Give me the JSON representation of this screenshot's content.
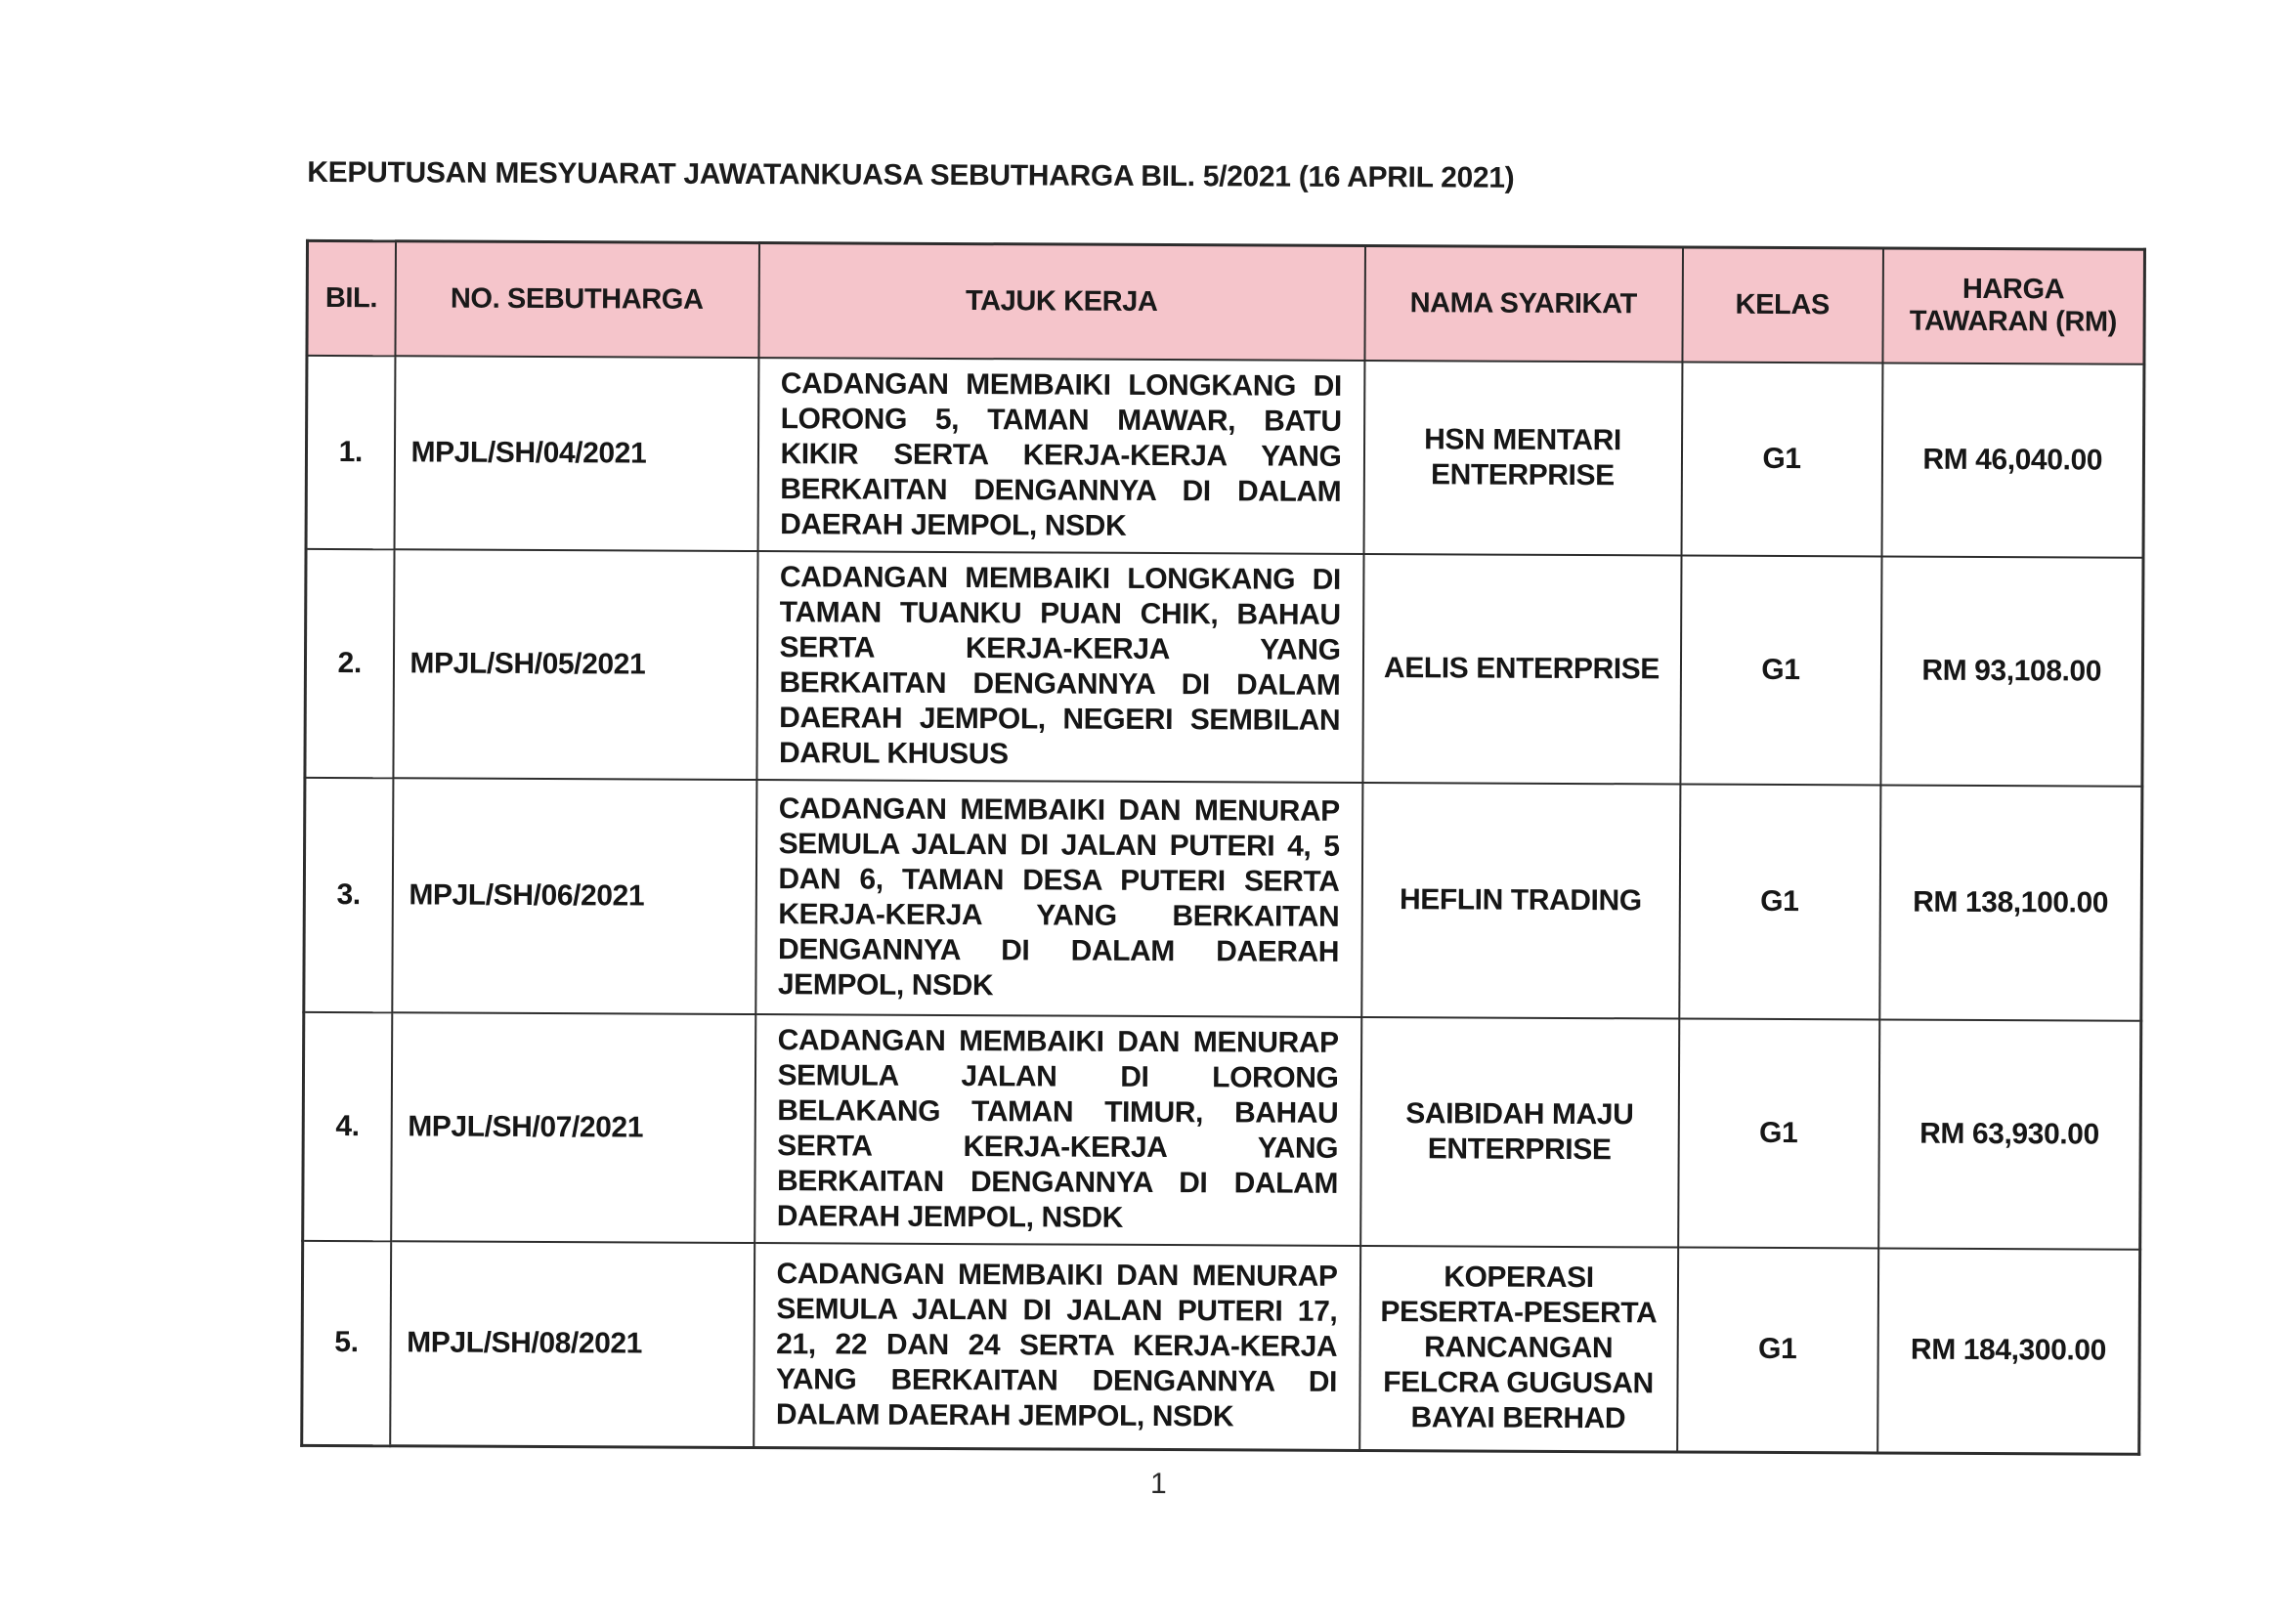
{
  "page": {
    "title": "KEPUTUSAN MESYUARAT JAWATANKUASA SEBUTHARGA BIL. 5/2021 (16 APRIL 2021)",
    "page_number": "1"
  },
  "colors": {
    "header_bg": "#f5c5cb",
    "border": "#2d2d2d",
    "text": "#1c1c1c"
  },
  "table": {
    "columns": [
      "BIL.",
      "NO. SEBUTHARGA",
      "TAJUK KERJA",
      "NAMA SYARIKAT",
      "KELAS",
      "HARGA TAWARAN (RM)"
    ],
    "rows": [
      {
        "bil": "1.",
        "no_sebutharga": "MPJL/SH/04/2021",
        "tajuk_kerja": "CADANGAN MEMBAIKI LONGKANG DI LORONG 5, TAMAN MAWAR, BATU KIKIR SERTA KERJA-KERJA YANG BERKAITAN DENGANNYA DI DALAM DAERAH JEMPOL, NSDK",
        "nama_syarikat": "HSN MENTARI ENTERPRISE",
        "kelas": "G1",
        "harga_tawaran": "RM 46,040.00"
      },
      {
        "bil": "2.",
        "no_sebutharga": "MPJL/SH/05/2021",
        "tajuk_kerja": "CADANGAN MEMBAIKI LONGKANG DI TAMAN TUANKU PUAN CHIK, BAHAU SERTA KERJA-KERJA YANG BERKAITAN DENGANNYA DI DALAM DAERAH JEMPOL, NEGERI SEMBILAN DARUL KHUSUS",
        "nama_syarikat": "AELIS ENTERPRISE",
        "kelas": "G1",
        "harga_tawaran": "RM 93,108.00"
      },
      {
        "bil": "3.",
        "no_sebutharga": "MPJL/SH/06/2021",
        "tajuk_kerja": "CADANGAN MEMBAIKI DAN MENURAP SEMULA JALAN DI JALAN PUTERI 4, 5 DAN 6, TAMAN DESA PUTERI SERTA KERJA-KERJA YANG BERKAITAN DENGANNYA DI DALAM DAERAH JEMPOL, NSDK",
        "nama_syarikat": "HEFLIN TRADING",
        "kelas": "G1",
        "harga_tawaran": "RM 138,100.00"
      },
      {
        "bil": "4.",
        "no_sebutharga": "MPJL/SH/07/2021",
        "tajuk_kerja": "CADANGAN MEMBAIKI DAN MENURAP SEMULA JALAN DI LORONG BELAKANG TAMAN TIMUR, BAHAU SERTA KERJA-KERJA YANG BERKAITAN DENGANNYA DI DALAM DAERAH JEMPOL, NSDK",
        "nama_syarikat": "SAIBIDAH MAJU ENTERPRISE",
        "kelas": "G1",
        "harga_tawaran": "RM 63,930.00"
      },
      {
        "bil": "5.",
        "no_sebutharga": "MPJL/SH/08/2021",
        "tajuk_kerja": "CADANGAN MEMBAIKI DAN MENURAP SEMULA JALAN DI JALAN PUTERI 17, 21, 22 DAN 24 SERTA KERJA-KERJA YANG BERKAITAN DENGANNYA DI DALAM DAERAH JEMPOL, NSDK",
        "nama_syarikat": "KOPERASI PESERTA-PESERTA RANCANGAN FELCRA GUGUSAN BAYAI BERHAD",
        "kelas": "G1",
        "harga_tawaran": "RM 184,300.00"
      }
    ]
  }
}
